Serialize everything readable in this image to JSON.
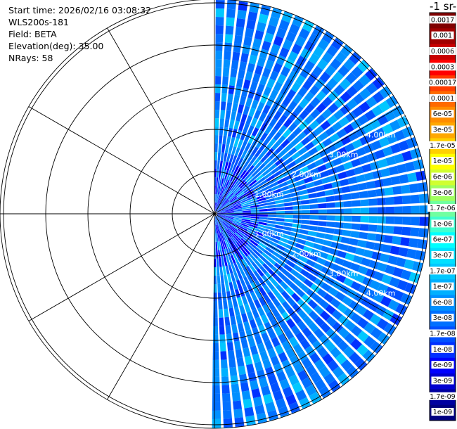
{
  "info": {
    "start_time": "Start time: 2026/02/16 03:08:32",
    "instrument": "WLS200s-181",
    "field": "Field: BETA",
    "elevation": "Elevation(deg): 35.00",
    "nrays": "NRays: 58"
  },
  "colorbar": {
    "title": "-1 sr-",
    "labels": [
      "0.0017",
      "0.001",
      "0.0006",
      "0.0003",
      "0.00017",
      "0.0001",
      "6e-05",
      "3e-05",
      "1.7e-05",
      "1e-05",
      "6e-06",
      "3e-06",
      "1.7e-06",
      "1e-06",
      "6e-07",
      "3e-07",
      "1.7e-07",
      "1e-07",
      "6e-08",
      "3e-08",
      "1.7e-08",
      "1e-08",
      "6e-09",
      "3e-09",
      "1.7e-09",
      "1e-09"
    ],
    "colors": [
      "#800000",
      "#a00000",
      "#c80000",
      "#ff0000",
      "#ff3c00",
      "#ff6a00",
      "#ff8c00",
      "#ffa800",
      "#ffd000",
      "#ffff00",
      "#d0ff30",
      "#a0ff60",
      "#70ffa0",
      "#40ffd0",
      "#00ffff",
      "#00e0ff",
      "#00c8ff",
      "#00b0ff",
      "#0090ff",
      "#0070ff",
      "#0050ff",
      "#0030ff",
      "#0000ff",
      "#0000d0",
      "#0000a0",
      "#000080"
    ]
  },
  "chart_data": {
    "type": "ppi",
    "field": "BETA",
    "elevation_deg": 35.0,
    "n_rays": 58,
    "azimuth_range_deg": [
      0,
      181
    ],
    "max_range_km": 6.0,
    "range_ring_labels": [
      "1.00km",
      "2.00km",
      "3.00km",
      "4.00km",
      "5"
    ],
    "lower_range_ring_labels": [
      "1.00km",
      "2.00km",
      "3.00km",
      "4.00km"
    ],
    "dominant_values": [
      "1e-08",
      "1.7e-08",
      "3e-08",
      "6e-08"
    ]
  }
}
